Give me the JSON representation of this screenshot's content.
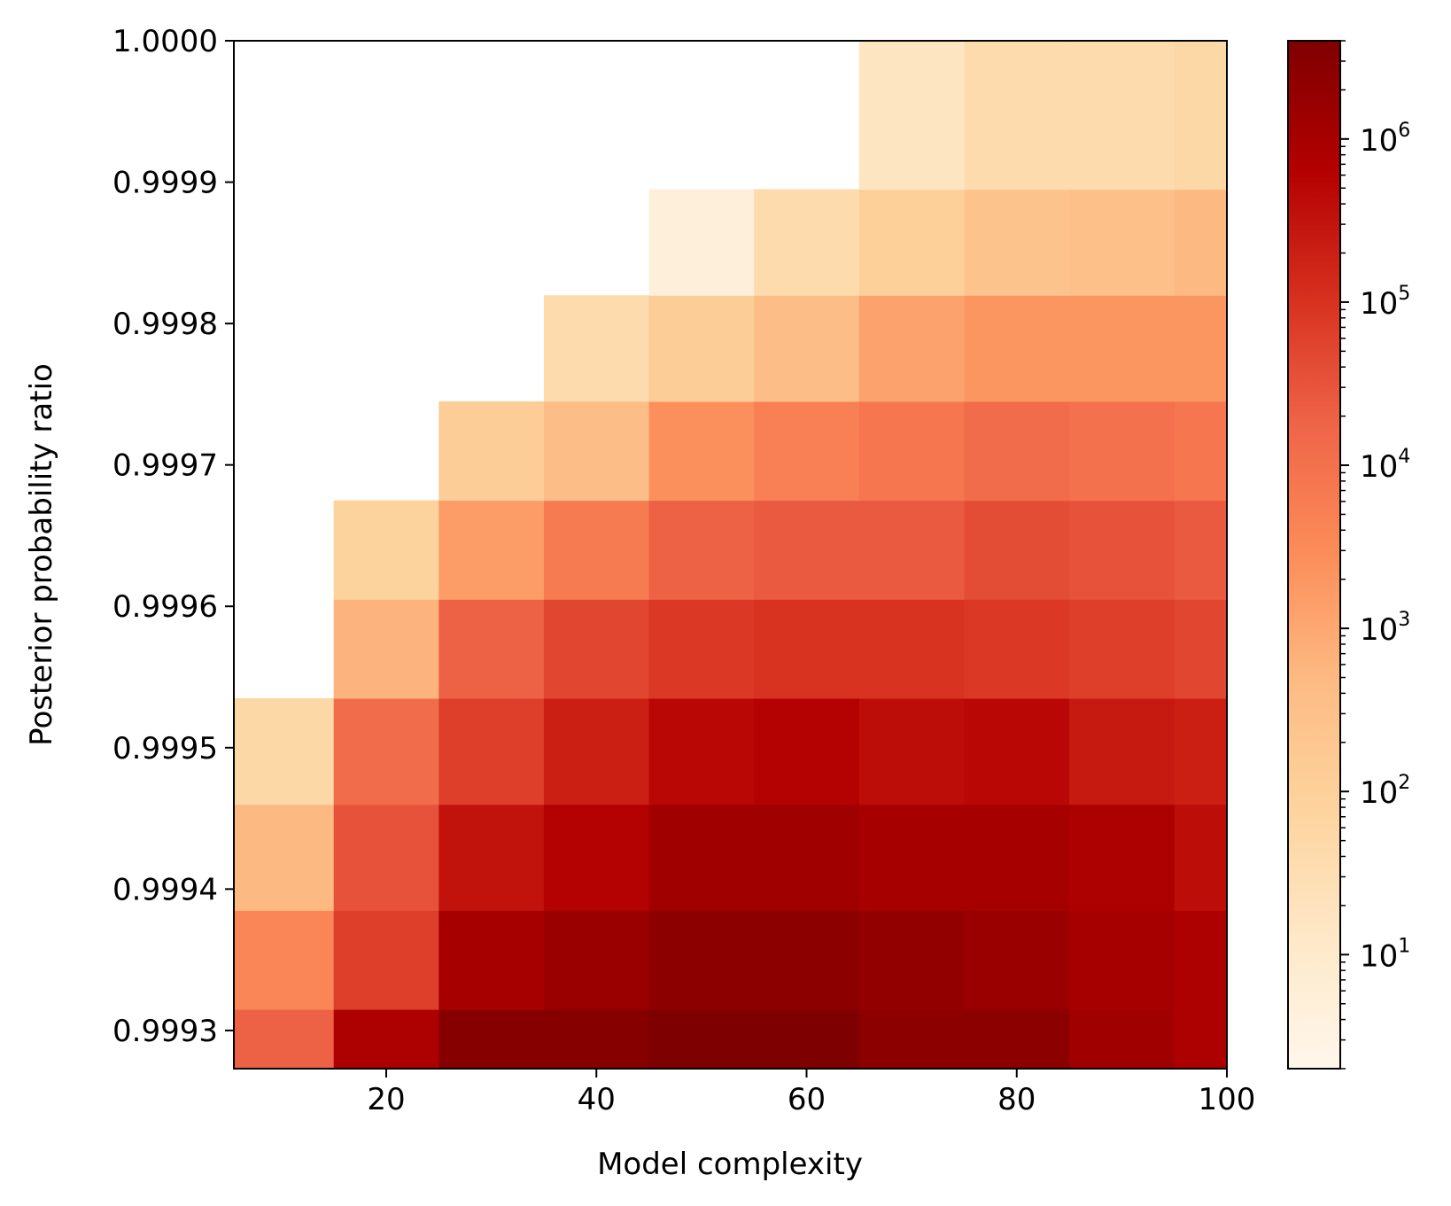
{
  "chart_data": {
    "type": "heatmap",
    "title": "",
    "xlabel": "Model complexity",
    "ylabel": "Posterior probability ratio",
    "x_values": [
      10,
      20,
      30,
      40,
      50,
      60,
      70,
      80,
      90,
      100
    ],
    "y_values": [
      0.99928,
      0.99935,
      0.99942,
      0.9995,
      0.99957,
      0.99964,
      0.99971,
      0.99978,
      0.99986,
      0.99993
    ],
    "xlim": [
      5.5,
      100
    ],
    "ylim": [
      0.999273,
      1.0
    ],
    "x_ticks": [
      20,
      40,
      60,
      80,
      100
    ],
    "x_tick_labels": [
      "20",
      "40",
      "60",
      "80",
      "100"
    ],
    "y_ticks": [
      0.9993,
      0.9994,
      0.9995,
      0.9996,
      0.9997,
      0.9998,
      0.9999,
      1.0
    ],
    "y_tick_labels": [
      "0.9993",
      "0.9994",
      "0.9995",
      "0.9996",
      "0.9997",
      "0.9998",
      "0.9999",
      "1.0000"
    ],
    "values_log10": [
      [
        4.3,
        5.9,
        6.5,
        6.5,
        6.6,
        6.6,
        6.4,
        6.4,
        6.1,
        5.9
      ],
      [
        3.6,
        4.8,
        6.0,
        6.2,
        6.4,
        6.4,
        6.3,
        6.2,
        6.0,
        5.9
      ],
      [
        2.7,
        4.5,
        5.5,
        5.8,
        6.1,
        6.1,
        6.0,
        6.0,
        5.9,
        5.6
      ],
      [
        1.7,
        4.1,
        4.8,
        5.3,
        5.7,
        5.8,
        5.6,
        5.7,
        5.4,
        5.3
      ],
      [
        null,
        2.8,
        4.3,
        4.7,
        4.9,
        5.0,
        5.0,
        4.9,
        4.8,
        4.7
      ],
      [
        null,
        1.9,
        3.2,
        3.8,
        4.3,
        4.4,
        4.4,
        4.6,
        4.5,
        4.4
      ],
      [
        null,
        null,
        2.1,
        2.6,
        3.4,
        3.7,
        3.9,
        4.1,
        4.0,
        3.9
      ],
      [
        null,
        null,
        null,
        1.6,
        2.1,
        2.6,
        3.1,
        3.3,
        3.3,
        3.3
      ],
      [
        null,
        null,
        null,
        null,
        0.7,
        1.6,
        2.0,
        2.4,
        2.5,
        2.7
      ],
      [
        null,
        null,
        null,
        null,
        null,
        null,
        1.2,
        1.6,
        1.6,
        1.7
      ]
    ],
    "colormap": "OrRd",
    "colorbar": {
      "scale": "log",
      "range": [
        2,
        4000000
      ],
      "major_ticks": [
        10,
        100,
        1000,
        10000,
        100000,
        1000000
      ],
      "tick_labels": [
        {
          "base": "10",
          "exp": "1"
        },
        {
          "base": "10",
          "exp": "2"
        },
        {
          "base": "10",
          "exp": "3"
        },
        {
          "base": "10",
          "exp": "4"
        },
        {
          "base": "10",
          "exp": "5"
        },
        {
          "base": "10",
          "exp": "6"
        }
      ]
    }
  }
}
